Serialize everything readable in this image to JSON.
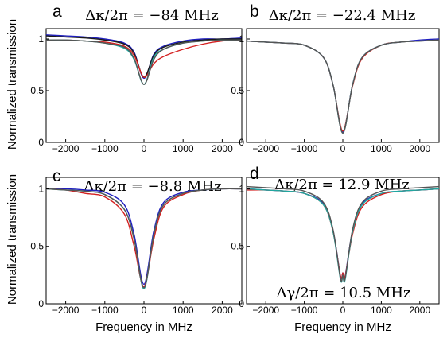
{
  "chart_data": [
    {
      "type": "line",
      "panel_letter": "a",
      "annotation": "Δκ/2π = −84 MHz",
      "xlim": [
        -2500,
        2500
      ],
      "ylim": [
        0,
        1.1
      ],
      "xticks": [
        -2000,
        -1000,
        0,
        1000,
        2000
      ],
      "yticks": [
        0,
        0.5,
        1
      ],
      "xtick_labels": [
        "−2000",
        "−1000",
        "0",
        "1000",
        "2000"
      ],
      "ytick_labels": [
        "0",
        "0.5",
        "1"
      ],
      "ylabel": "Normalized transmission",
      "xlabel": "",
      "grid": false,
      "dip": {
        "center": 0,
        "width": 170,
        "min_fraction": 0.6,
        "lineshape": "asymmetric Lorentzian"
      },
      "series": [
        {
          "color": "#1f1fbf",
          "x": [
            -2500,
            -2000,
            -1500,
            -1000,
            -500,
            -250,
            0,
            250,
            500,
            1000,
            1500,
            2000,
            2500
          ],
          "values": [
            1.04,
            1.03,
            1.02,
            1.0,
            0.96,
            0.87,
            0.62,
            0.85,
            0.93,
            0.98,
            1.0,
            1.0,
            1.01
          ]
        },
        {
          "color": "#1a1a1a",
          "x": [
            -2500,
            -2000,
            -1500,
            -1000,
            -500,
            -250,
            0,
            250,
            500,
            1000,
            1500,
            2000,
            2500
          ],
          "values": [
            1.03,
            1.02,
            1.01,
            0.99,
            0.95,
            0.86,
            0.63,
            0.84,
            0.92,
            0.97,
            0.99,
            1.0,
            1.0
          ]
        },
        {
          "color": "#d42020",
          "x": [
            -2500,
            -2000,
            -1500,
            -1000,
            -500,
            -250,
            0,
            250,
            500,
            1000,
            1500,
            2000,
            2500
          ],
          "values": [
            0.99,
            0.99,
            0.98,
            0.97,
            0.93,
            0.84,
            0.63,
            0.76,
            0.83,
            0.9,
            0.95,
            0.98,
            0.99
          ]
        },
        {
          "color": "#20a8a0",
          "x": [
            -2500,
            -2000,
            -1500,
            -1000,
            -500,
            -250,
            0,
            250,
            500,
            1000,
            1500,
            2000,
            2500
          ],
          "values": [
            0.99,
            0.99,
            0.98,
            0.96,
            0.91,
            0.8,
            0.56,
            0.82,
            0.9,
            0.96,
            0.98,
            0.99,
            0.99
          ]
        },
        {
          "color": "#555555",
          "x": [
            -2500,
            -2000,
            -1500,
            -1000,
            -500,
            -250,
            0,
            250,
            500,
            1000,
            1500,
            2000,
            2500
          ],
          "values": [
            0.99,
            0.99,
            0.98,
            0.96,
            0.92,
            0.81,
            0.56,
            0.8,
            0.9,
            0.96,
            0.98,
            0.99,
            0.99
          ]
        }
      ]
    },
    {
      "type": "line",
      "panel_letter": "b",
      "annotation": "Δκ/2π = −22.4 MHz",
      "xlim": [
        -2500,
        2500
      ],
      "ylim": [
        0,
        1.1
      ],
      "xticks": [
        -2000,
        -1000,
        0,
        1000,
        2000
      ],
      "yticks": [
        0,
        0.5,
        1
      ],
      "xtick_labels": [
        "−2000",
        "−1000",
        "0",
        "1000",
        "2000"
      ],
      "ytick_labels": [
        "0",
        "0.5",
        "1"
      ],
      "ylabel": "",
      "xlabel": "",
      "grid": false,
      "dip": {
        "center": 0,
        "width": 230,
        "min_fraction": 0.1,
        "lineshape": "Lorentzian"
      },
      "series": [
        {
          "color": "#1f1fbf",
          "x": [
            -2500,
            -2000,
            -1500,
            -1000,
            -500,
            -250,
            0,
            250,
            500,
            1000,
            1500,
            2000,
            2500
          ],
          "values": [
            0.98,
            0.97,
            0.96,
            0.94,
            0.82,
            0.55,
            0.1,
            0.55,
            0.82,
            0.94,
            0.97,
            0.99,
            1.0
          ]
        },
        {
          "color": "#d42020",
          "x": [
            -2500,
            -2000,
            -1500,
            -1000,
            -500,
            -250,
            0,
            250,
            500,
            1000,
            1500,
            2000,
            2500
          ],
          "values": [
            0.98,
            0.97,
            0.96,
            0.94,
            0.82,
            0.55,
            0.11,
            0.54,
            0.81,
            0.94,
            0.97,
            0.98,
            0.99
          ]
        },
        {
          "color": "#20a8a0",
          "x": [
            -2500,
            -2000,
            -1500,
            -1000,
            -500,
            -250,
            0,
            250,
            500,
            1000,
            1500,
            2000,
            2500
          ],
          "values": [
            0.98,
            0.97,
            0.96,
            0.94,
            0.82,
            0.55,
            0.09,
            0.55,
            0.82,
            0.94,
            0.97,
            0.98,
            0.99
          ]
        },
        {
          "color": "#555555",
          "x": [
            -2500,
            -2000,
            -1500,
            -1000,
            -500,
            -250,
            0,
            250,
            500,
            1000,
            1500,
            2000,
            2500
          ],
          "values": [
            0.98,
            0.97,
            0.96,
            0.94,
            0.82,
            0.55,
            0.09,
            0.55,
            0.82,
            0.94,
            0.97,
            0.98,
            0.99
          ]
        }
      ]
    },
    {
      "type": "line",
      "panel_letter": "c",
      "annotation": "Δκ/2π = −8.8 MHz",
      "xlim": [
        -2500,
        2500
      ],
      "ylim": [
        0,
        1.1
      ],
      "xticks": [
        -2000,
        -1000,
        0,
        1000,
        2000
      ],
      "yticks": [
        0,
        0.5,
        1
      ],
      "xtick_labels": [
        "−2000",
        "−1000",
        "0",
        "1000",
        "2000"
      ],
      "ytick_labels": [
        "0",
        "0.5",
        "1"
      ],
      "ylabel": "Normalized transmission",
      "xlabel": "",
      "grid": false,
      "dip": {
        "center": 0,
        "width": 260,
        "min_fraction": 0.14,
        "lineshape": "Lorentzian"
      },
      "series": [
        {
          "color": "#1f1fbf",
          "x": [
            -2500,
            -2000,
            -1500,
            -1000,
            -500,
            -250,
            0,
            250,
            500,
            1000,
            1500,
            2000,
            2500
          ],
          "values": [
            1.0,
            1.0,
            0.99,
            0.97,
            0.86,
            0.6,
            0.17,
            0.63,
            0.88,
            0.97,
            0.99,
            1.0,
            1.0
          ]
        },
        {
          "color": "#d42020",
          "x": [
            -2500,
            -2000,
            -1500,
            -1000,
            -500,
            -250,
            0,
            250,
            500,
            1000,
            1500,
            2000,
            2500
          ],
          "values": [
            1.0,
            0.99,
            0.96,
            0.93,
            0.78,
            0.5,
            0.15,
            0.56,
            0.84,
            0.95,
            0.99,
            1.0,
            1.0
          ]
        },
        {
          "color": "#20a8a0",
          "x": [
            -2500,
            -2000,
            -1500,
            -1000,
            -500,
            -250,
            0,
            250,
            500,
            1000,
            1500,
            2000,
            2500
          ],
          "values": [
            1.0,
            0.99,
            0.98,
            0.95,
            0.82,
            0.56,
            0.13,
            0.6,
            0.86,
            0.96,
            0.99,
            1.0,
            1.0
          ]
        },
        {
          "color": "#555555",
          "x": [
            -2500,
            -2000,
            -1500,
            -1000,
            -500,
            -250,
            0,
            250,
            500,
            1000,
            1500,
            2000,
            2500
          ],
          "values": [
            1.0,
            0.99,
            0.98,
            0.95,
            0.82,
            0.56,
            0.14,
            0.6,
            0.86,
            0.96,
            0.99,
            1.0,
            1.0
          ]
        }
      ]
    },
    {
      "type": "line",
      "panel_letter": "d",
      "annotation": "Δκ/2π = 12.9 MHz",
      "annotation2": "Δγ/2π = 10.5 MHz",
      "xlim": [
        -2500,
        2500
      ],
      "ylim": [
        0,
        1.1
      ],
      "xticks": [
        -2000,
        -1000,
        0,
        1000,
        2000
      ],
      "yticks": [
        0,
        0.5,
        1
      ],
      "xtick_labels": [
        "−2000",
        "−1000",
        "0",
        "1000",
        "2000"
      ],
      "ytick_labels": [
        "0",
        "0.5",
        "1"
      ],
      "ylabel": "",
      "xlabel": "Frequency in MHz",
      "grid": false,
      "dip": {
        "center": 0,
        "width": 190,
        "min_fraction": 0.22,
        "lineshape": "split Lorentzian"
      },
      "series": [
        {
          "color": "#1f1fbf",
          "x": [
            -2500,
            -2000,
            -1500,
            -1000,
            -500,
            -250,
            -60,
            0,
            60,
            250,
            500,
            1000,
            1500,
            2000,
            2500
          ],
          "values": [
            1.0,
            0.99,
            0.98,
            0.96,
            0.87,
            0.63,
            0.24,
            0.27,
            0.24,
            0.63,
            0.87,
            0.96,
            0.98,
            0.99,
            1.0
          ]
        },
        {
          "color": "#d42020",
          "x": [
            -2500,
            -2000,
            -1500,
            -1000,
            -500,
            -250,
            -60,
            0,
            60,
            250,
            500,
            1000,
            1500,
            2000,
            2500
          ],
          "values": [
            0.99,
            0.99,
            0.98,
            0.96,
            0.86,
            0.62,
            0.24,
            0.27,
            0.24,
            0.6,
            0.84,
            0.95,
            0.98,
            0.99,
            1.0
          ]
        },
        {
          "color": "#20a8a0",
          "x": [
            -2500,
            -2000,
            -1500,
            -1000,
            -500,
            -250,
            -60,
            0,
            60,
            250,
            500,
            1000,
            1500,
            2000,
            2500
          ],
          "values": [
            1.0,
            0.99,
            0.98,
            0.96,
            0.86,
            0.62,
            0.21,
            0.24,
            0.21,
            0.62,
            0.86,
            0.96,
            0.98,
            0.99,
            1.0
          ]
        },
        {
          "color": "#555555",
          "x": [
            -2500,
            -2000,
            -1500,
            -1000,
            -500,
            -250,
            -60,
            0,
            60,
            250,
            500,
            1000,
            1500,
            2000,
            2500
          ],
          "values": [
            1.02,
            1.01,
            1.0,
            0.98,
            0.88,
            0.64,
            0.22,
            0.25,
            0.22,
            0.64,
            0.88,
            0.98,
            1.0,
            1.01,
            1.02
          ]
        }
      ]
    }
  ]
}
